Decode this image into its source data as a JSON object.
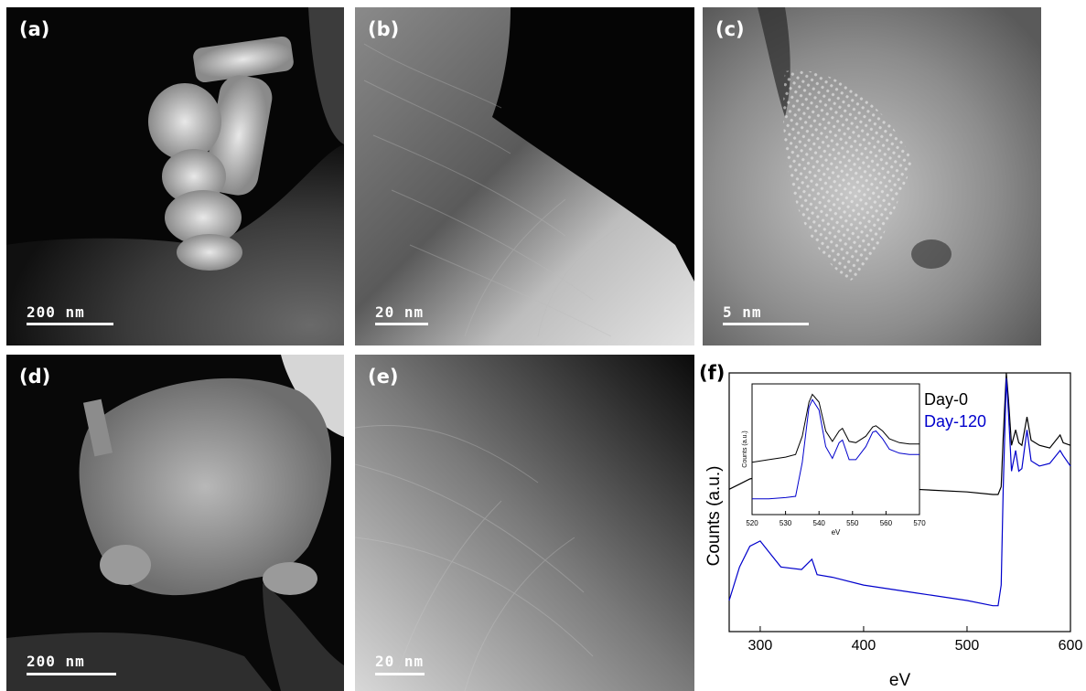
{
  "panels": [
    {
      "label": "(a)",
      "scale": "200 nm"
    },
    {
      "label": "(b)",
      "scale": "20 nm"
    },
    {
      "label": "(c)",
      "scale": "5 nm"
    },
    {
      "label": "(d)",
      "scale": "200 nm"
    },
    {
      "label": "(e)",
      "scale": "20 nm"
    },
    {
      "label": "(f)"
    }
  ],
  "chart_data": [
    {
      "type": "line",
      "xlabel": "eV",
      "ylabel": "Counts (a.u.)",
      "xlim": [
        270,
        600
      ],
      "x_ticks": [
        "300",
        "400",
        "500",
        "600"
      ],
      "series": [
        {
          "name": "Day-0",
          "color": "#000000",
          "x": [
            270,
            280,
            290,
            300,
            320,
            340,
            350,
            355,
            370,
            400,
            450,
            500,
            525,
            530,
            533,
            535,
            538,
            540,
            543,
            547,
            550,
            553,
            558,
            562,
            570,
            580,
            590,
            593,
            600
          ],
          "y": [
            0.55,
            0.57,
            0.59,
            0.6,
            0.59,
            0.59,
            0.63,
            0.6,
            0.58,
            0.57,
            0.55,
            0.54,
            0.53,
            0.53,
            0.56,
            0.75,
            1.0,
            0.9,
            0.72,
            0.78,
            0.73,
            0.72,
            0.83,
            0.74,
            0.72,
            0.71,
            0.76,
            0.73,
            0.72
          ]
        },
        {
          "name": "Day-120",
          "color": "#0000cc",
          "x": [
            270,
            280,
            290,
            300,
            310,
            320,
            340,
            350,
            355,
            370,
            400,
            450,
            500,
            525,
            530,
            533,
            535,
            538,
            540,
            543,
            547,
            550,
            553,
            558,
            562,
            570,
            580,
            590,
            593,
            600
          ],
          "y": [
            0.12,
            0.25,
            0.33,
            0.35,
            0.3,
            0.25,
            0.24,
            0.28,
            0.22,
            0.21,
            0.18,
            0.15,
            0.12,
            0.1,
            0.1,
            0.18,
            0.55,
            0.98,
            0.85,
            0.62,
            0.7,
            0.62,
            0.63,
            0.78,
            0.66,
            0.64,
            0.65,
            0.7,
            0.68,
            0.64
          ]
        }
      ]
    },
    {
      "type": "line",
      "xlabel": "eV",
      "ylabel": "Counts (a.u.)",
      "xlim": [
        520,
        570
      ],
      "x_ticks": [
        "520",
        "530",
        "540",
        "550",
        "560",
        "570"
      ],
      "series": [
        {
          "name": "Day-0",
          "color": "#000000",
          "x": [
            520,
            525,
            530,
            533,
            535,
            537,
            538,
            540,
            542,
            544,
            546,
            547,
            549,
            551,
            554,
            556,
            557,
            559,
            561,
            564,
            567,
            570
          ],
          "y": [
            0.4,
            0.42,
            0.44,
            0.46,
            0.6,
            0.86,
            0.92,
            0.86,
            0.64,
            0.56,
            0.64,
            0.66,
            0.56,
            0.55,
            0.6,
            0.67,
            0.68,
            0.64,
            0.58,
            0.55,
            0.54,
            0.54
          ]
        },
        {
          "name": "Day-120",
          "color": "#0000cc",
          "x": [
            520,
            525,
            530,
            533,
            535,
            537,
            538,
            540,
            542,
            544,
            546,
            547,
            549,
            551,
            554,
            556,
            557,
            559,
            561,
            564,
            567,
            570
          ],
          "y": [
            0.12,
            0.12,
            0.13,
            0.14,
            0.4,
            0.82,
            0.88,
            0.8,
            0.52,
            0.43,
            0.55,
            0.57,
            0.42,
            0.42,
            0.52,
            0.63,
            0.64,
            0.58,
            0.5,
            0.47,
            0.46,
            0.46
          ]
        }
      ]
    }
  ]
}
